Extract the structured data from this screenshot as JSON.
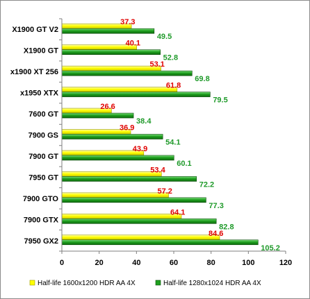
{
  "chart_data": {
    "type": "bar",
    "orientation": "horizontal",
    "categories": [
      "X1900 GT V2",
      "X1900 GT",
      "x1900 XT 256",
      "x1950 XTX",
      "7600 GT",
      "7900 GS",
      "7900 GT",
      "7950 GT",
      "7900 GTO",
      "7900 GTX",
      "7950 GX2"
    ],
    "series": [
      {
        "name": "Half-life 1600x1200 HDR AA 4X",
        "values": [
          37.3,
          40.1,
          53.1,
          61.8,
          26.6,
          36.9,
          43.9,
          53.4,
          57.2,
          64.1,
          84.6
        ],
        "color": "#ffff00",
        "label_color": "#e00000"
      },
      {
        "name": "Half-life 1280x1024 HDR AA 4X",
        "values": [
          49.5,
          52.8,
          69.8,
          79.5,
          38.4,
          54.1,
          60.1,
          72.2,
          77.3,
          82.8,
          105.2
        ],
        "color": "#1fa01f",
        "label_color": "#1f9a2a"
      }
    ],
    "xlim": [
      0,
      120
    ],
    "xticks": [
      0,
      20,
      40,
      60,
      80,
      100,
      120
    ],
    "grid": false,
    "legend_position": "bottom"
  }
}
